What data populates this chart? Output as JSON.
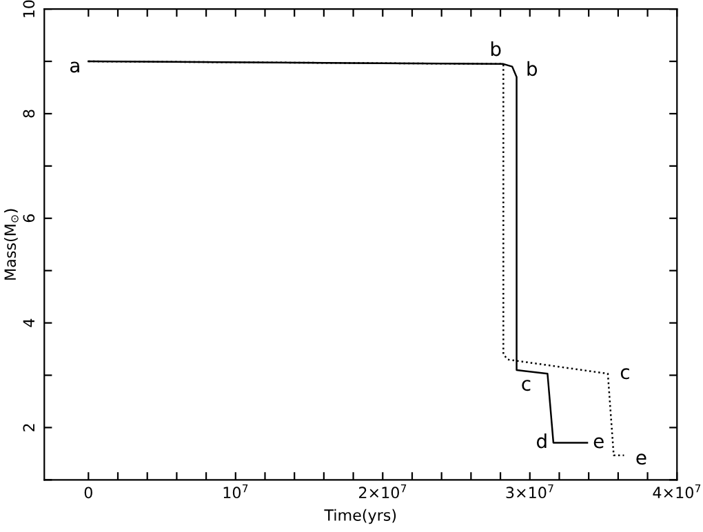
{
  "chart_data": {
    "type": "line",
    "xlabel": "Time(yrs)",
    "ylabel": "Mass(M$_{⊙}$)",
    "xlim": [
      -3000000,
      40000000
    ],
    "ylim": [
      1,
      10
    ],
    "xticks": [
      0,
      {
        "value": 2000000,
        "label": null
      },
      {
        "value": 4000000,
        "label": null
      },
      {
        "value": 6000000,
        "label": null
      },
      {
        "value": 8000000,
        "label": null
      },
      {
        "value": 10000000,
        "label": "10$^{7}$"
      },
      {
        "value": 12000000,
        "label": null
      },
      {
        "value": 14000000,
        "label": null
      },
      {
        "value": 16000000,
        "label": null
      },
      {
        "value": 18000000,
        "label": null
      },
      {
        "value": 20000000,
        "label": "2×10$^{7}$"
      },
      {
        "value": 22000000,
        "label": null
      },
      {
        "value": 24000000,
        "label": null
      },
      {
        "value": 26000000,
        "label": null
      },
      {
        "value": 28000000,
        "label": null
      },
      {
        "value": 30000000,
        "label": "3×10$^{7}$"
      },
      {
        "value": 32000000,
        "label": null
      },
      {
        "value": 34000000,
        "label": null
      },
      {
        "value": 36000000,
        "label": null
      },
      {
        "value": 38000000,
        "label": null
      },
      {
        "value": 40000000,
        "label": "4×10$^{7}$"
      }
    ],
    "yticks": [
      {
        "value": 1,
        "label": null
      },
      2,
      {
        "value": 3,
        "label": null
      },
      4,
      {
        "value": 5,
        "label": null
      },
      6,
      {
        "value": 7,
        "label": null
      },
      8,
      {
        "value": 9,
        "label": null
      },
      10
    ],
    "grid": false,
    "series": [
      {
        "color": "#000000",
        "line_style": "solid",
        "x": [
          0,
          28200000,
          28800000,
          29100000,
          29100000,
          31200000,
          31600000,
          33900000
        ],
        "values": [
          9.0,
          8.95,
          8.9,
          8.7,
          3.1,
          3.03,
          1.71,
          1.71
        ]
      },
      {
        "color": "#000000",
        "line_style": "dotted",
        "x": [
          0,
          28200000,
          28200000,
          28500000,
          35300000,
          35700000,
          36400000
        ],
        "values": [
          9.0,
          8.95,
          3.4,
          3.3,
          3.03,
          1.47,
          1.47
        ]
      }
    ],
    "annotations": [
      {
        "text": "a",
        "x": 0,
        "y": 9.0
      },
      {
        "text": "b",
        "x": 28200000,
        "y": 8.95
      },
      {
        "text": "b",
        "x": 29100000,
        "y": 8.9
      },
      {
        "text": "c",
        "x": 29100000,
        "y": 3.1
      },
      {
        "text": "c",
        "x": 35300000,
        "y": 3.03
      },
      {
        "text": "d",
        "x": 31600000,
        "y": 1.71
      },
      {
        "text": "e",
        "x": 33900000,
        "y": 1.71
      },
      {
        "text": "e",
        "x": 36400000,
        "y": 1.47
      }
    ]
  }
}
